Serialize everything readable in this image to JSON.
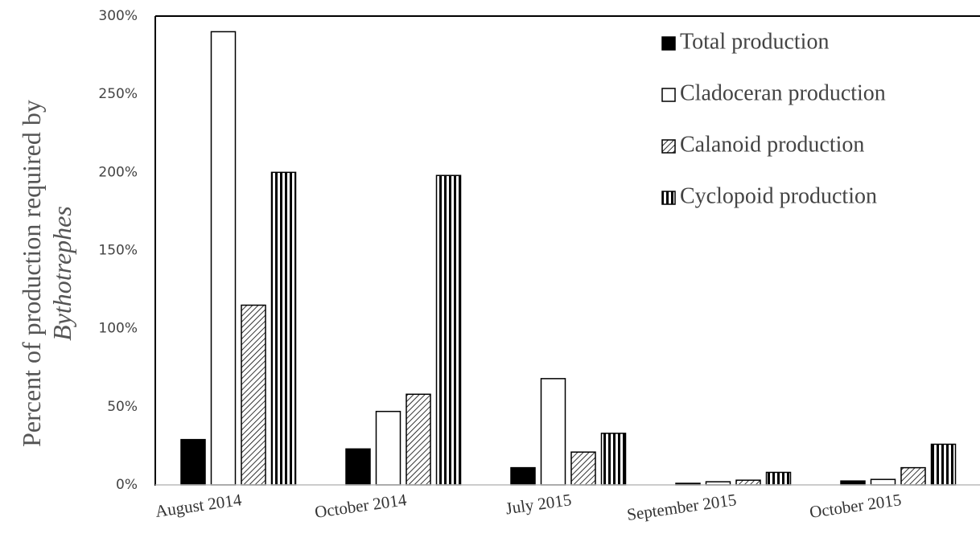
{
  "chart_data": {
    "type": "bar",
    "y_label": "Percent of production required by",
    "y_label_italic": "Bythotrephes",
    "categories": [
      "August 2014",
      "October 2014",
      "July 2015",
      "September 2015",
      "October 2015"
    ],
    "series": [
      {
        "name": "Total production",
        "color": "#000000",
        "pattern": "solid",
        "values": [
          29,
          23,
          11,
          1,
          2.5
        ]
      },
      {
        "name": "Cladoceran production",
        "color": "#ffffff",
        "pattern": "solid",
        "values": [
          290,
          47,
          68,
          2,
          3.5
        ]
      },
      {
        "name": "Calanoid production",
        "color": "#000000",
        "pattern": "diagonal",
        "values": [
          115,
          58,
          21,
          3,
          11
        ]
      },
      {
        "name": "Cyclopoid production",
        "color": "#000000",
        "pattern": "vertical",
        "values": [
          200,
          198,
          33,
          8,
          26
        ]
      }
    ],
    "ylim": [
      0,
      300
    ],
    "yticks": [
      {
        "value": 0,
        "label": "0%"
      },
      {
        "value": 50,
        "label": "50%"
      },
      {
        "value": 100,
        "label": "100%"
      },
      {
        "value": 150,
        "label": "150%"
      },
      {
        "value": 200,
        "label": "200%"
      },
      {
        "value": 250,
        "label": "250%"
      },
      {
        "value": 300,
        "label": "300%"
      }
    ],
    "grid": false,
    "legend": "upper right"
  }
}
